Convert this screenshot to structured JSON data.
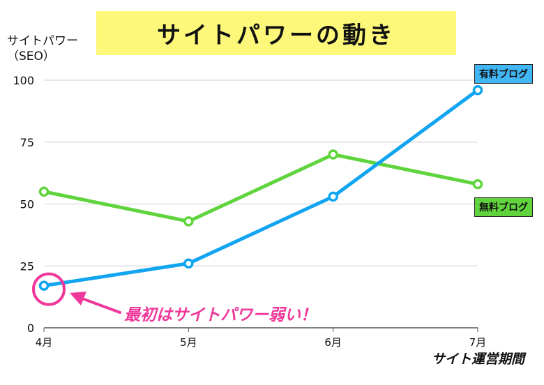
{
  "title": "サイトパワーの動き",
  "ylabel_lines": [
    "サイトパワー",
    "（SEO）"
  ],
  "xlabel": "サイト運営期間",
  "annotation": "最初はサイトパワー弱い！",
  "colors": {
    "paid": "#11a4f1",
    "free": "#5fd43c",
    "annotation": "#f0389a",
    "title_bg": "#fdf87a"
  },
  "chart_data": {
    "type": "line",
    "categories": [
      "4月",
      "5月",
      "6月",
      "7月"
    ],
    "yticks": [
      "0",
      "25",
      "50",
      "75",
      "100"
    ],
    "ylim": [
      0,
      100
    ],
    "grid": true,
    "series": [
      {
        "name": "有料ブログ",
        "values": [
          17,
          26,
          53,
          96
        ]
      },
      {
        "name": "無料ブログ",
        "values": [
          55,
          43,
          70,
          58
        ]
      }
    ]
  }
}
